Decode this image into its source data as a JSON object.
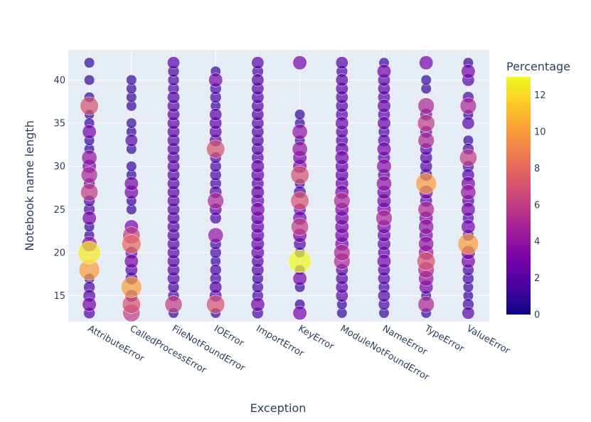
{
  "chart_data": {
    "type": "scatter",
    "xlabel": "Exception",
    "ylabel": "Notebook name length",
    "ylim": [
      12,
      43.5
    ],
    "y_ticks": [
      15,
      20,
      25,
      30,
      35,
      40
    ],
    "grid": true,
    "colorbar": {
      "title": "Percentage",
      "range": [
        0,
        13
      ],
      "ticks": [
        0,
        2,
        4,
        6,
        8,
        10,
        12
      ]
    },
    "categories": [
      "AttributeError",
      "CalledProcessError",
      "FileNotFoundError",
      "IOError",
      "ImportError",
      "KeyError",
      "ModuleNotFoundError",
      "NameError",
      "TypeError",
      "ValueError"
    ],
    "points": {
      "AttributeError": [
        [
          13,
          1.5
        ],
        [
          14,
          3
        ],
        [
          15,
          2
        ],
        [
          16,
          1.5
        ],
        [
          17,
          1
        ],
        [
          18,
          10
        ],
        [
          20,
          12.5
        ],
        [
          21,
          4
        ],
        [
          22,
          1
        ],
        [
          23,
          1
        ],
        [
          24,
          3
        ],
        [
          25,
          1.5
        ],
        [
          26,
          1.5
        ],
        [
          27,
          6
        ],
        [
          28,
          1.5
        ],
        [
          29,
          5
        ],
        [
          30,
          3
        ],
        [
          31,
          4
        ],
        [
          32,
          1
        ],
        [
          33,
          1
        ],
        [
          34,
          3
        ],
        [
          35,
          1
        ],
        [
          36,
          0.8
        ],
        [
          37,
          7
        ],
        [
          38,
          1
        ],
        [
          40,
          1
        ],
        [
          42,
          1
        ]
      ],
      "CalledProcessError": [
        [
          13,
          6
        ],
        [
          14,
          7
        ],
        [
          15,
          2
        ],
        [
          16,
          10
        ],
        [
          17,
          2
        ],
        [
          18,
          2
        ],
        [
          19,
          3
        ],
        [
          20,
          2
        ],
        [
          21,
          8
        ],
        [
          22,
          6
        ],
        [
          23,
          3
        ],
        [
          25,
          1
        ],
        [
          26,
          1
        ],
        [
          27,
          3
        ],
        [
          28,
          3
        ],
        [
          29,
          1
        ],
        [
          30,
          1
        ],
        [
          32,
          1
        ],
        [
          33,
          2
        ],
        [
          34,
          1
        ],
        [
          35,
          1
        ],
        [
          37,
          1
        ],
        [
          38,
          1
        ],
        [
          39,
          1
        ],
        [
          40,
          1
        ]
      ],
      "FileNotFoundError": [
        [
          13,
          1
        ],
        [
          14,
          6
        ],
        [
          15,
          1.5
        ],
        [
          16,
          1.5
        ],
        [
          17,
          2
        ],
        [
          18,
          2
        ],
        [
          19,
          2
        ],
        [
          20,
          2
        ],
        [
          21,
          2
        ],
        [
          22,
          2
        ],
        [
          23,
          2
        ],
        [
          24,
          2
        ],
        [
          25,
          2
        ],
        [
          26,
          2
        ],
        [
          27,
          2
        ],
        [
          28,
          2
        ],
        [
          29,
          2
        ],
        [
          30,
          2
        ],
        [
          31,
          2
        ],
        [
          32,
          2
        ],
        [
          33,
          2
        ],
        [
          34,
          2
        ],
        [
          35,
          2
        ],
        [
          36,
          2
        ],
        [
          37,
          2
        ],
        [
          38,
          2
        ],
        [
          39,
          1.5
        ],
        [
          40,
          1.5
        ],
        [
          41,
          1.5
        ],
        [
          42,
          2
        ]
      ],
      "IOError": [
        [
          13,
          1
        ],
        [
          14,
          7
        ],
        [
          15,
          2
        ],
        [
          16,
          2
        ],
        [
          17,
          1.5
        ],
        [
          18,
          1.5
        ],
        [
          19,
          1
        ],
        [
          20,
          1.5
        ],
        [
          21,
          1.5
        ],
        [
          22,
          4
        ],
        [
          24,
          1.5
        ],
        [
          25,
          2
        ],
        [
          26,
          5
        ],
        [
          27,
          2
        ],
        [
          28,
          1.5
        ],
        [
          29,
          1.5
        ],
        [
          30,
          1.5
        ],
        [
          31,
          1.5
        ],
        [
          32,
          7
        ],
        [
          33,
          2
        ],
        [
          34,
          2
        ],
        [
          35,
          2
        ],
        [
          36,
          2
        ],
        [
          37,
          1
        ],
        [
          38,
          1.5
        ],
        [
          39,
          1.5
        ],
        [
          40,
          3
        ],
        [
          41,
          1
        ]
      ],
      "ImportError": [
        [
          13,
          1.5
        ],
        [
          14,
          3
        ],
        [
          15,
          1.5
        ],
        [
          16,
          1.5
        ],
        [
          17,
          1.5
        ],
        [
          18,
          2
        ],
        [
          19,
          2
        ],
        [
          20,
          2.5
        ],
        [
          21,
          2.5
        ],
        [
          22,
          2.5
        ],
        [
          23,
          2.5
        ],
        [
          24,
          2.5
        ],
        [
          25,
          3
        ],
        [
          26,
          2.5
        ],
        [
          27,
          2.5
        ],
        [
          28,
          2
        ],
        [
          29,
          2.5
        ],
        [
          30,
          2.5
        ],
        [
          31,
          2
        ],
        [
          32,
          2
        ],
        [
          33,
          2
        ],
        [
          34,
          2
        ],
        [
          35,
          2
        ],
        [
          36,
          2
        ],
        [
          37,
          2
        ],
        [
          38,
          2
        ],
        [
          39,
          2
        ],
        [
          40,
          2
        ],
        [
          41,
          1.5
        ],
        [
          42,
          2
        ]
      ],
      "KeyError": [
        [
          13,
          3
        ],
        [
          14,
          1
        ],
        [
          16,
          1
        ],
        [
          17,
          3
        ],
        [
          18,
          1
        ],
        [
          19,
          13
        ],
        [
          20,
          1
        ],
        [
          21,
          2
        ],
        [
          22,
          3
        ],
        [
          23,
          6
        ],
        [
          24,
          3
        ],
        [
          25,
          2
        ],
        [
          26,
          7
        ],
        [
          27,
          2
        ],
        [
          28,
          1
        ],
        [
          29,
          7
        ],
        [
          30,
          3
        ],
        [
          31,
          3
        ],
        [
          32,
          4
        ],
        [
          33,
          1
        ],
        [
          34,
          4
        ],
        [
          35,
          1
        ],
        [
          36,
          1
        ],
        [
          42,
          3
        ]
      ],
      "ModuleNotFoundError": [
        [
          13,
          1
        ],
        [
          14,
          1
        ],
        [
          15,
          2
        ],
        [
          16,
          2
        ],
        [
          17,
          2
        ],
        [
          18,
          2
        ],
        [
          19,
          5
        ],
        [
          20,
          5
        ],
        [
          21,
          3
        ],
        [
          22,
          3
        ],
        [
          23,
          3
        ],
        [
          24,
          3
        ],
        [
          25,
          3
        ],
        [
          26,
          5
        ],
        [
          27,
          3
        ],
        [
          28,
          2.5
        ],
        [
          29,
          2.5
        ],
        [
          30,
          2.5
        ],
        [
          31,
          3
        ],
        [
          32,
          2.5
        ],
        [
          33,
          2
        ],
        [
          34,
          2
        ],
        [
          35,
          2.5
        ],
        [
          36,
          2
        ],
        [
          37,
          2
        ],
        [
          38,
          2
        ],
        [
          39,
          2
        ],
        [
          40,
          2
        ],
        [
          41,
          1.5
        ],
        [
          42,
          2
        ]
      ],
      "NameError": [
        [
          13,
          1
        ],
        [
          14,
          1.5
        ],
        [
          15,
          2
        ],
        [
          16,
          1.5
        ],
        [
          17,
          2
        ],
        [
          18,
          2
        ],
        [
          19,
          3
        ],
        [
          20,
          2
        ],
        [
          21,
          2.5
        ],
        [
          22,
          2.5
        ],
        [
          23,
          3
        ],
        [
          24,
          5
        ],
        [
          25,
          3
        ],
        [
          26,
          3
        ],
        [
          27,
          3
        ],
        [
          28,
          4
        ],
        [
          29,
          2
        ],
        [
          30,
          3.5
        ],
        [
          31,
          2
        ],
        [
          32,
          3
        ],
        [
          33,
          2
        ],
        [
          34,
          1.5
        ],
        [
          35,
          2.5
        ],
        [
          36,
          2
        ],
        [
          37,
          2.5
        ],
        [
          38,
          2
        ],
        [
          39,
          2
        ],
        [
          40,
          2
        ],
        [
          41,
          3
        ],
        [
          42,
          1
        ]
      ],
      "TypeError": [
        [
          13,
          1
        ],
        [
          14,
          5
        ],
        [
          15,
          1
        ],
        [
          16,
          3
        ],
        [
          17,
          4
        ],
        [
          18,
          5
        ],
        [
          19,
          7
        ],
        [
          20,
          4
        ],
        [
          21,
          4
        ],
        [
          22,
          3
        ],
        [
          23,
          4
        ],
        [
          24,
          3
        ],
        [
          25,
          5
        ],
        [
          26,
          2
        ],
        [
          27,
          3
        ],
        [
          28,
          10
        ],
        [
          29,
          2
        ],
        [
          30,
          2
        ],
        [
          31,
          2
        ],
        [
          32,
          2
        ],
        [
          33,
          5
        ],
        [
          34,
          2
        ],
        [
          35,
          6
        ],
        [
          36,
          2
        ],
        [
          37,
          5
        ],
        [
          39,
          1
        ],
        [
          40,
          1
        ],
        [
          42,
          3
        ]
      ],
      "ValueError": [
        [
          13,
          2
        ],
        [
          14,
          1.5
        ],
        [
          15,
          1
        ],
        [
          16,
          1
        ],
        [
          17,
          1.5
        ],
        [
          18,
          1.5
        ],
        [
          19,
          3
        ],
        [
          20,
          3
        ],
        [
          21,
          10
        ],
        [
          22,
          1.5
        ],
        [
          23,
          3
        ],
        [
          24,
          1.5
        ],
        [
          25,
          3
        ],
        [
          26,
          2
        ],
        [
          27,
          4
        ],
        [
          28,
          3
        ],
        [
          29,
          2
        ],
        [
          30,
          1.5
        ],
        [
          31,
          6
        ],
        [
          32,
          1.5
        ],
        [
          33,
          1
        ],
        [
          35,
          2
        ],
        [
          36,
          1
        ],
        [
          37,
          5
        ],
        [
          38,
          1.5
        ],
        [
          40,
          2
        ],
        [
          41,
          3
        ],
        [
          42,
          1
        ]
      ]
    }
  }
}
